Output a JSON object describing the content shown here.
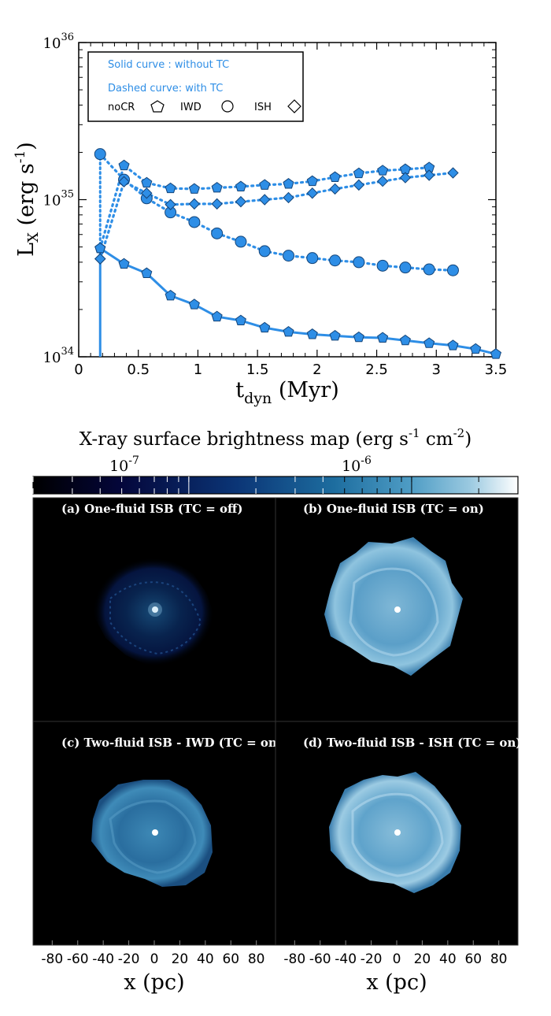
{
  "chart_data": [
    {
      "type": "line",
      "title": "",
      "xlabel_main": "t",
      "xlabel_sub": "dyn",
      "xlabel_unit": "(Myr)",
      "ylabel_main": "L",
      "ylabel_sub": "X",
      "ylabel_unit_a": "(erg s",
      "ylabel_unit_exp": "-1",
      "ylabel_unit_b": ")",
      "xlim": [
        0,
        3.5
      ],
      "ylim": [
        1e+34,
        1e+36
      ],
      "yscale": "log",
      "xticks": [
        "0",
        "0.5",
        "1",
        "1.5",
        "2",
        "2.5",
        "3",
        "3.5"
      ],
      "yticks": [
        {
          "base": "10",
          "exp": "34"
        },
        {
          "base": "10",
          "exp": "35"
        },
        {
          "base": "10",
          "exp": "36"
        }
      ],
      "grid": false,
      "legend_position": "top-left",
      "legend": {
        "solid_text": "Solid curve : without TC",
        "dashed_text": "Dashed curve: with TC",
        "entries": [
          {
            "label": "noCR",
            "marker": "pentagon"
          },
          {
            "label": "IWD",
            "marker": "circle"
          },
          {
            "label": "ISH",
            "marker": "diamond"
          }
        ]
      },
      "colors": {
        "series": "#2e8ee6",
        "marker_fill": "#2e8ee6",
        "marker_edge": "#14457a"
      },
      "series": [
        {
          "model": "noCR",
          "tc": "without",
          "line": "solid",
          "marker": "pentagon",
          "x": [
            0.18,
            0.38,
            0.57,
            0.77,
            0.97,
            1.16,
            1.36,
            1.56,
            1.76,
            1.96,
            2.15,
            2.35,
            2.55,
            2.74,
            2.94,
            3.14,
            3.33,
            3.5
          ],
          "y": [
            4.9e+34,
            3.9e+34,
            3.4e+34,
            2.45e+34,
            2.15e+34,
            1.8e+34,
            1.7e+34,
            1.53e+34,
            1.44e+34,
            1.39e+34,
            1.36e+34,
            1.33e+34,
            1.32e+34,
            1.27e+34,
            1.22e+34,
            1.18e+34,
            1.12e+34,
            1.04e+34
          ]
        },
        {
          "model": "ISH",
          "tc": "without",
          "line": "solid",
          "marker": "diamond",
          "x": [
            0.18
          ],
          "y": [
            4.2e+34
          ]
        },
        {
          "model": "noCR",
          "tc": "with",
          "line": "dotted",
          "marker": "pentagon",
          "x": [
            0.18,
            0.38,
            0.57,
            0.77,
            0.97,
            1.16,
            1.36,
            1.56,
            1.76,
            1.96,
            2.15,
            2.35,
            2.55,
            2.74,
            2.94
          ],
          "y": [
            4.9e+34,
            1.65e+35,
            1.28e+35,
            1.18e+35,
            1.17e+35,
            1.19e+35,
            1.21e+35,
            1.24e+35,
            1.26e+35,
            1.31e+35,
            1.39e+35,
            1.47e+35,
            1.53e+35,
            1.56e+35,
            1.6e+35
          ]
        },
        {
          "model": "IWD",
          "tc": "with",
          "line": "dotted",
          "marker": "circle",
          "x": [
            0.18,
            0.38,
            0.57,
            0.77,
            0.97,
            1.16,
            1.36,
            1.56,
            1.76,
            1.96,
            2.15,
            2.35,
            2.55,
            2.74,
            2.94,
            3.14
          ],
          "y": [
            1.95e+35,
            1.34e+35,
            1.02e+35,
            8.3e+34,
            7.2e+34,
            6.1e+34,
            5.4e+34,
            4.7e+34,
            4.4e+34,
            4.25e+34,
            4.1e+34,
            4e+34,
            3.8e+34,
            3.7e+34,
            3.6e+34,
            3.55e+34
          ]
        },
        {
          "model": "ISH",
          "tc": "with",
          "line": "dotted",
          "marker": "diamond",
          "x": [
            0.18,
            0.38,
            0.57,
            0.77,
            0.97,
            1.16,
            1.36,
            1.56,
            1.76,
            1.96,
            2.15,
            2.35,
            2.55,
            2.74,
            2.94,
            3.14
          ],
          "y": [
            4.2e+34,
            1.3e+35,
            1.1e+35,
            9.3e+34,
            9.4e+34,
            9.4e+34,
            9.7e+34,
            1e+35,
            1.03e+35,
            1.1e+35,
            1.17e+35,
            1.24e+35,
            1.31e+35,
            1.38e+35,
            1.43e+35,
            1.48e+35
          ]
        }
      ]
    },
    {
      "type": "heatmap",
      "title_a": "X-ray surface brightness map (erg s",
      "title_exp1": "-1",
      "title_mid": " cm",
      "title_exp2": "-2",
      "title_b": ")",
      "colorbar_ticks": [
        {
          "base": "10",
          "exp": "-7",
          "value": 1e-07
        },
        {
          "base": "10",
          "exp": "-6",
          "value": 1e-06
        }
      ],
      "colorbar_range": [
        2e-08,
        3e-06
      ],
      "colorbar_colors": [
        "#000000",
        "#04063a",
        "#0b3576",
        "#1d6d9f",
        "#4f9dc5",
        "#9ac9e0",
        "#ffffff"
      ],
      "xlabel": "x (pc)",
      "xticks": [
        "-80",
        "-60",
        "-40",
        "-20",
        "0",
        "20",
        "40",
        "60",
        "80"
      ],
      "panels": [
        {
          "label": "(a) One-fluid ISB (TC = off)",
          "brightness": 0.22
        },
        {
          "label": "(b) One-fluid ISB (TC = on)",
          "brightness": 0.75
        },
        {
          "label": "(c) Two-fluid ISB - IWD (TC = on)",
          "brightness": 0.45
        },
        {
          "label": "(d) Two-fluid ISB - ISH (TC = on)",
          "brightness": 0.8
        }
      ]
    }
  ]
}
